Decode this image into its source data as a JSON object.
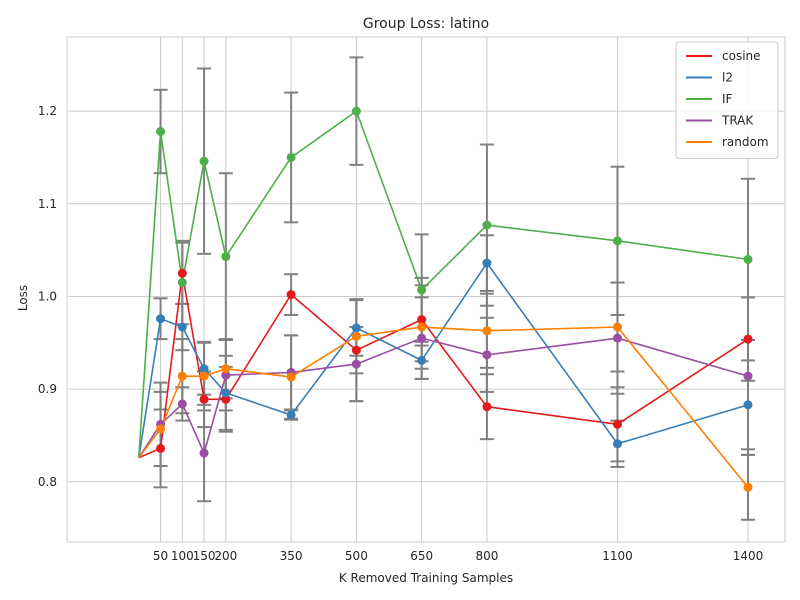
{
  "chart_data": {
    "type": "line",
    "title": "Group Loss: latino",
    "xlabel": "K Removed Training Samples",
    "ylabel": "Loss",
    "x_ticks": [
      50,
      100,
      150,
      200,
      350,
      500,
      650,
      800,
      1100,
      1400
    ],
    "x_tick_labels": [
      "50",
      "100",
      "150",
      "200",
      "350",
      "500",
      "650",
      "800",
      "1100",
      "1400"
    ],
    "y_ticks": [
      0.8,
      0.9,
      1.0,
      1.1,
      1.2
    ],
    "y_tick_labels": [
      "0.8",
      "0.9",
      "1.0",
      "1.1",
      "1.2"
    ],
    "xlim": [
      -165,
      1485
    ],
    "ylim": [
      0.735,
      1.28
    ],
    "grid": true,
    "legend_position": "top-right",
    "baseline": {
      "x": 0,
      "y": 0.826
    },
    "error_bar_color": "#808080",
    "series": [
      {
        "name": "cosine",
        "color": "#e41a1c",
        "x": [
          50,
          100,
          150,
          200,
          350,
          500,
          650,
          800,
          1100,
          1400
        ],
        "y": [
          0.836,
          1.025,
          0.889,
          0.889,
          1.002,
          0.942,
          0.975,
          0.881,
          0.862,
          0.954
        ],
        "err": [
          0.042,
          0.033,
          0.03,
          0.035,
          0.022,
          0.055,
          0.045,
          0.035,
          0.04,
          0.045
        ]
      },
      {
        "name": "l2",
        "color": "#377eb8",
        "x": [
          50,
          100,
          150,
          200,
          350,
          500,
          650,
          800,
          1100,
          1400
        ],
        "y": [
          0.976,
          0.967,
          0.922,
          0.896,
          0.872,
          0.966,
          0.931,
          1.036,
          0.841,
          0.883
        ],
        "err": [
          0.022,
          0.025,
          0.028,
          0.04,
          0.005,
          0.03,
          0.02,
          0.03,
          0.025,
          0.048
        ]
      },
      {
        "name": "IF",
        "color": "#4daf4a",
        "x": [
          50,
          100,
          150,
          200,
          350,
          500,
          650,
          800,
          1100,
          1400
        ],
        "y": [
          1.178,
          1.015,
          1.146,
          1.043,
          1.15,
          1.2,
          1.007,
          1.077,
          1.06,
          1.04
        ],
        "err": [
          0.045,
          0.045,
          0.1,
          0.09,
          0.07,
          0.058,
          0.06,
          0.087,
          0.08,
          0.087
        ]
      },
      {
        "name": "TRAK",
        "color": "#984ea3",
        "x": [
          50,
          100,
          150,
          200,
          350,
          500,
          650,
          800,
          1100,
          1400
        ],
        "y": [
          0.862,
          0.884,
          0.831,
          0.915,
          0.918,
          0.927,
          0.955,
          0.937,
          0.955,
          0.914
        ],
        "err": [
          0.045,
          0.018,
          0.052,
          0.038,
          0.04,
          0.04,
          0.044,
          0.04,
          0.06,
          0.085
        ]
      },
      {
        "name": "random",
        "color": "#ff7f00",
        "x": [
          50,
          100,
          150,
          200,
          350,
          500,
          650,
          800,
          1100,
          1400
        ],
        "y": [
          0.857,
          0.914,
          0.914,
          0.922,
          0.913,
          0.957,
          0.967,
          0.963,
          0.967,
          0.794
        ],
        "err": [
          0.04,
          0.04,
          0.037,
          0.032,
          0.045,
          0.04,
          0.045,
          0.04,
          0.048,
          0.035
        ]
      }
    ]
  }
}
